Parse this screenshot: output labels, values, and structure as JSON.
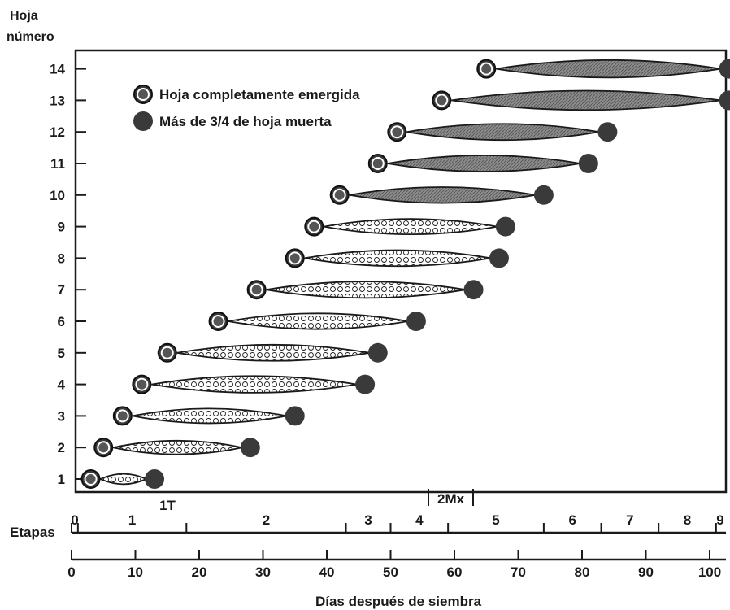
{
  "chart_data": {
    "type": "scatter",
    "ylabel_line1": "Hoja",
    "ylabel_line2": "número",
    "xlabel": "Días después de siembra",
    "xlim": [
      0,
      105
    ],
    "ylim": [
      0.5,
      14.5
    ],
    "x_ticks": [
      0,
      10,
      20,
      30,
      40,
      50,
      60,
      70,
      80,
      90,
      100
    ],
    "y_ticks": [
      1,
      2,
      3,
      4,
      5,
      6,
      7,
      8,
      9,
      10,
      11,
      12,
      13,
      14
    ],
    "grid": false,
    "legend_position": "top-left",
    "legend": [
      {
        "label": "Hoja completamente emergida",
        "marker": "ring-circle"
      },
      {
        "label": "Más de 3/4 de hoja muerta",
        "marker": "solid-circle"
      }
    ],
    "leaves": [
      {
        "leaf": 1,
        "emerged": 3,
        "dead": 13,
        "texture": "circles"
      },
      {
        "leaf": 2,
        "emerged": 5,
        "dead": 28,
        "texture": "circles"
      },
      {
        "leaf": 3,
        "emerged": 8,
        "dead": 35,
        "texture": "circles"
      },
      {
        "leaf": 4,
        "emerged": 11,
        "dead": 46,
        "texture": "circles"
      },
      {
        "leaf": 5,
        "emerged": 15,
        "dead": 48,
        "texture": "circles"
      },
      {
        "leaf": 6,
        "emerged": 23,
        "dead": 54,
        "texture": "circles"
      },
      {
        "leaf": 7,
        "emerged": 29,
        "dead": 63,
        "texture": "circles"
      },
      {
        "leaf": 8,
        "emerged": 35,
        "dead": 67,
        "texture": "circles"
      },
      {
        "leaf": 9,
        "emerged": 38,
        "dead": 68,
        "texture": "circles"
      },
      {
        "leaf": 10,
        "emerged": 42,
        "dead": 74,
        "texture": "hatched"
      },
      {
        "leaf": 11,
        "emerged": 48,
        "dead": 81,
        "texture": "hatched"
      },
      {
        "leaf": 12,
        "emerged": 51,
        "dead": 84,
        "texture": "hatched"
      },
      {
        "leaf": 13,
        "emerged": 58,
        "dead": 103,
        "texture": "hatched"
      },
      {
        "leaf": 14,
        "emerged": 65,
        "dead": 103,
        "texture": "hatched"
      }
    ],
    "markers": [
      {
        "label": "1T",
        "x": 15
      },
      {
        "label": "2Mx",
        "x": 58.5
      }
    ],
    "stages_label": "Etapas",
    "stages": [
      {
        "label": "0",
        "start": 0,
        "end": 1
      },
      {
        "label": "1",
        "start": 1,
        "end": 18
      },
      {
        "label": "2",
        "start": 18,
        "end": 43
      },
      {
        "label": "3",
        "start": 43,
        "end": 50
      },
      {
        "label": "4",
        "start": 50,
        "end": 59
      },
      {
        "label": "5",
        "start": 59,
        "end": 74
      },
      {
        "label": "6",
        "start": 74,
        "end": 83
      },
      {
        "label": "7",
        "start": 83,
        "end": 92
      },
      {
        "label": "8",
        "start": 92,
        "end": 101
      },
      {
        "label": "9",
        "start": 101,
        "end": 104
      }
    ]
  }
}
